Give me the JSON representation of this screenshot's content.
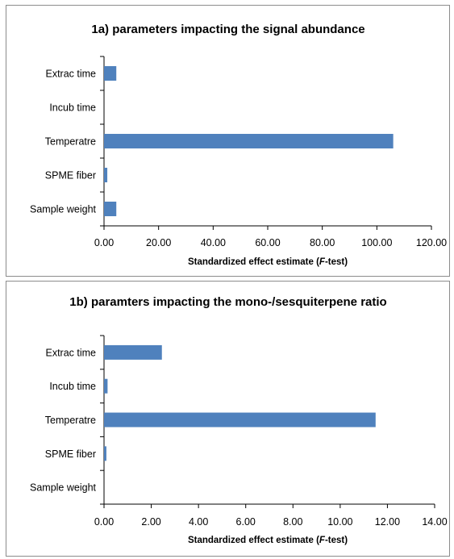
{
  "bar_color": "#4F81BD",
  "axis_color": "#000000",
  "chart_data": [
    {
      "type": "bar",
      "orientation": "horizontal",
      "title": "1a) parameters impacting the signal abundance",
      "xlabel_pre": "Standardized effect estimate (",
      "xlabel_italic": "F",
      "xlabel_post": "-test)",
      "categories": [
        "Extrac time",
        "Incub time",
        "Temperatre",
        "SPME fiber",
        "Sample weight"
      ],
      "values": [
        4.5,
        0,
        106,
        1.2,
        4.5
      ],
      "xlim": [
        0,
        120
      ],
      "ticks": [
        "0.00",
        "20.00",
        "40.00",
        "60.00",
        "80.00",
        "100.00",
        "120.00"
      ],
      "grid": false
    },
    {
      "type": "bar",
      "orientation": "horizontal",
      "title": "1b) paramters impacting the mono-/sesquiterpene ratio",
      "xlabel_pre": "Standardized effect estimate (",
      "xlabel_italic": "F",
      "xlabel_post": "-test)",
      "categories": [
        "Extrac time",
        "Incub time",
        "Temperatre",
        "SPME fiber",
        "Sample weight"
      ],
      "values": [
        2.45,
        0.15,
        11.5,
        0.1,
        0
      ],
      "xlim": [
        0,
        14
      ],
      "ticks": [
        "0.00",
        "2.00",
        "4.00",
        "6.00",
        "8.00",
        "10.00",
        "12.00",
        "14.00"
      ],
      "grid": false
    }
  ]
}
